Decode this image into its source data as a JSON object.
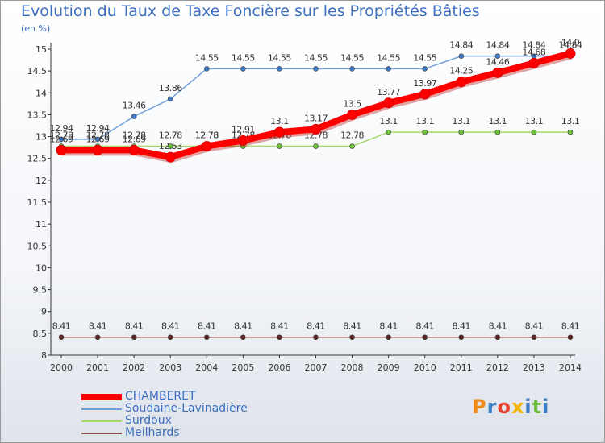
{
  "title": "Evolution du Taux de Taxe Foncière sur les Propriétés Bâties",
  "unit": "(en %)",
  "logo": "Proxiti",
  "chart_data": {
    "type": "line",
    "title": "Evolution du Taux de Taxe Foncière sur les Propriétés Bâties",
    "ylabel": "(en %)",
    "xlabel": "",
    "ylim": [
      8,
      15
    ],
    "yticks": [
      8,
      8.5,
      9,
      9.5,
      10,
      10.5,
      11,
      11.5,
      12,
      12.5,
      13,
      13.5,
      14,
      14.5,
      15
    ],
    "grid": false,
    "legend_position": "bottom-left",
    "x": [
      "2000",
      "2001",
      "2002",
      "2003",
      "2004",
      "2005",
      "2006",
      "2007",
      "2008",
      "2009",
      "2010",
      "2011",
      "2012",
      "2013",
      "2014"
    ],
    "series": [
      {
        "name": "Soudaine-Lavinadière",
        "color": "#6f9fd8",
        "marker": "#3f78c4",
        "values": [
          12.94,
          12.94,
          13.46,
          13.86,
          14.55,
          14.55,
          14.55,
          14.55,
          14.55,
          14.55,
          14.55,
          14.84,
          14.84,
          14.84,
          14.84
        ],
        "labels": [
          "12.94",
          "12.94",
          "13.46",
          "13.86",
          "14.55",
          "14.55",
          "14.55",
          "14.55",
          "14.55",
          "14.55",
          "14.55",
          "14.84",
          "14.84",
          "14.84",
          "14.84"
        ]
      },
      {
        "name": "Surdoux",
        "color": "#a6d96a",
        "marker": "#6cbf3b",
        "values": [
          12.78,
          12.78,
          12.78,
          12.78,
          12.78,
          12.78,
          12.78,
          12.78,
          12.78,
          13.1,
          13.1,
          13.1,
          13.1,
          13.1,
          13.1
        ],
        "labels": [
          "12.78",
          "12.78",
          "12.78",
          "12.78",
          "12.78",
          "12.78",
          "12.78",
          "12.78",
          "12.78",
          "13.1",
          "13.1",
          "13.1",
          "13.1",
          "13.1",
          "13.1"
        ]
      },
      {
        "name": "Meilhards",
        "color": "#8b4f50",
        "marker": "#5b2325",
        "values": [
          8.41,
          8.41,
          8.41,
          8.41,
          8.41,
          8.41,
          8.41,
          8.41,
          8.41,
          8.41,
          8.41,
          8.41,
          8.41,
          8.41,
          8.41
        ],
        "labels": [
          "8.41",
          "8.41",
          "8.41",
          "8.41",
          "8.41",
          "8.41",
          "8.41",
          "8.41",
          "8.41",
          "8.41",
          "8.41",
          "8.41",
          "8.41",
          "8.41",
          "8.41"
        ]
      },
      {
        "name": "CHAMBERET",
        "color": "#ff0000",
        "marker": "#ff0000",
        "values": [
          12.69,
          12.69,
          12.69,
          12.53,
          12.78,
          12.91,
          13.1,
          13.17,
          13.5,
          13.77,
          13.97,
          14.25,
          14.46,
          14.68,
          14.9
        ],
        "labels": [
          "12.69",
          "12.69",
          "12.69",
          "12.53",
          "12.78",
          "12.91",
          "13.1",
          "13.17",
          "13.5",
          "13.77",
          "13.97",
          "14.25",
          "14.46",
          "14.68",
          "14.9"
        ]
      }
    ],
    "legend": [
      "CHAMBERET",
      "Soudaine-Lavinadière",
      "Surdoux",
      "Meilhards"
    ]
  }
}
